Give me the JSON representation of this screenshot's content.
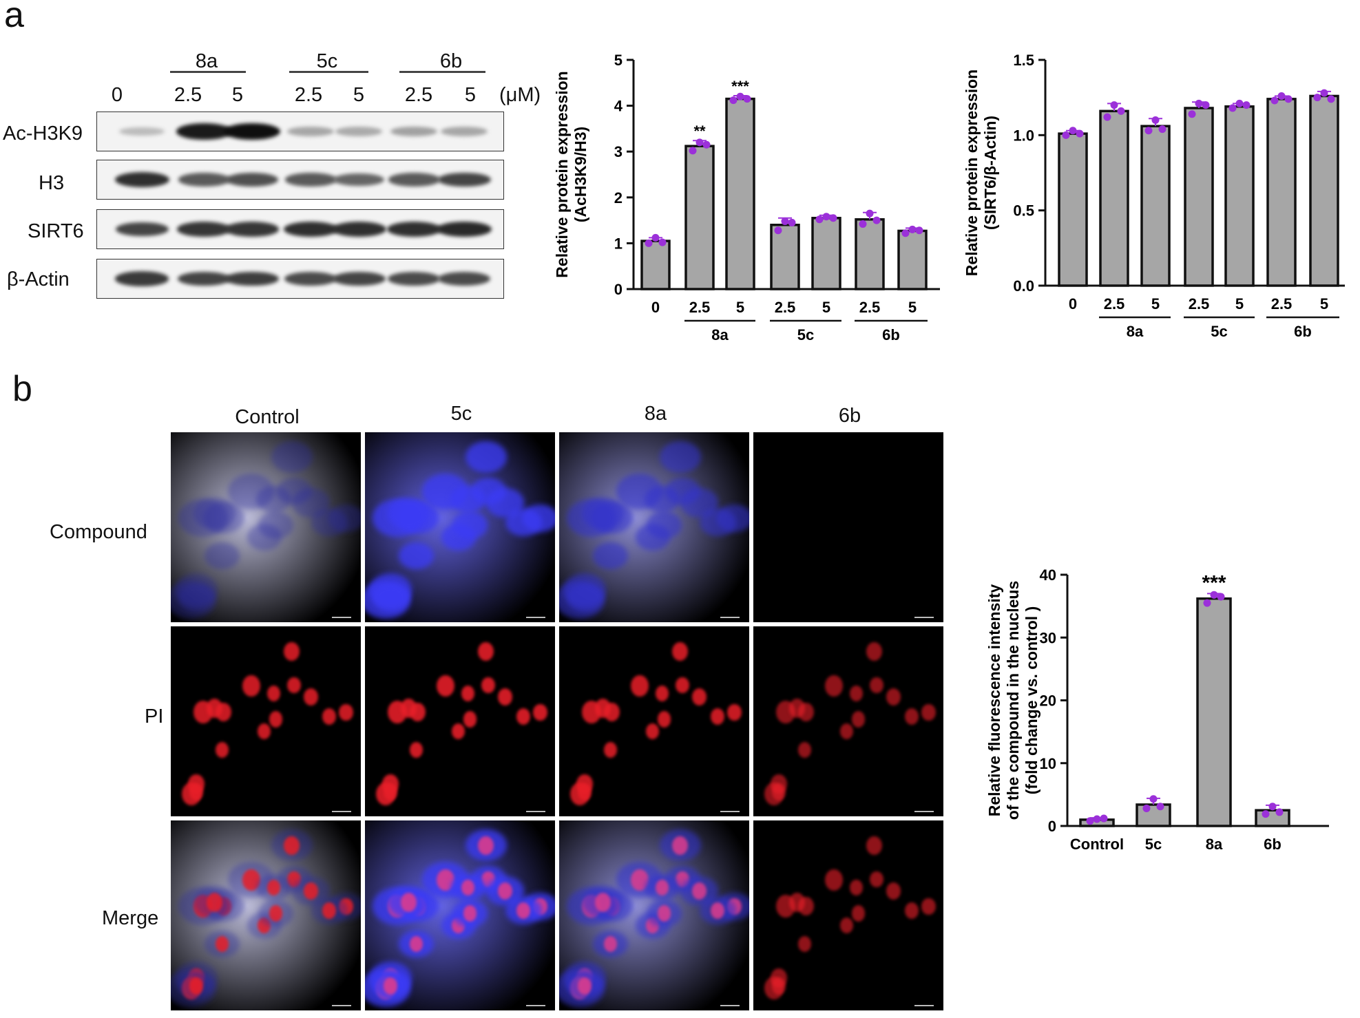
{
  "panel_a": {
    "letter": "a",
    "western_blot": {
      "groups": [
        {
          "name": "8a",
          "doses": [
            "2.5",
            "5"
          ]
        },
        {
          "name": "5c",
          "doses": [
            "2.5",
            "5"
          ]
        },
        {
          "name": "6b",
          "doses": [
            "2.5",
            "5"
          ]
        }
      ],
      "lane_labels": [
        "0",
        "2.5",
        "5",
        "2.5",
        "5",
        "2.5",
        "5"
      ],
      "unit": "(μM)",
      "rows": [
        {
          "label": "Ac-H3K9",
          "intensity": [
            0.2,
            0.95,
            1.0,
            0.3,
            0.28,
            0.32,
            0.3
          ]
        },
        {
          "label": "H3",
          "intensity": [
            0.85,
            0.65,
            0.7,
            0.65,
            0.6,
            0.65,
            0.75
          ]
        },
        {
          "label": "SIRT6",
          "intensity": [
            0.75,
            0.82,
            0.82,
            0.85,
            0.85,
            0.85,
            0.88
          ]
        },
        {
          "label": "β-Actin",
          "intensity": [
            0.8,
            0.75,
            0.78,
            0.72,
            0.75,
            0.72,
            0.72
          ]
        }
      ]
    }
  },
  "panel_b": {
    "letter": "b",
    "columns": [
      "Control",
      "5c",
      "8a",
      "6b"
    ],
    "rows": [
      "Compound",
      "PI",
      "Merge"
    ]
  },
  "colors": {
    "bar": "#a6a6a6",
    "point": "#9b30d9",
    "axis": "#111111"
  },
  "chart_data": [
    {
      "type": "bar",
      "ylabel": [
        "Relative protein expression",
        "(AcH3K9/H3)"
      ],
      "ylim": [
        0,
        5
      ],
      "yticks": [
        "0",
        "1",
        "2",
        "3",
        "4",
        "5"
      ],
      "categories": [
        "0",
        "2.5",
        "5",
        "2.5",
        "5",
        "2.5",
        "5"
      ],
      "groups": [
        "8a",
        "5c",
        "6b"
      ],
      "values": [
        1.05,
        3.12,
        4.15,
        1.4,
        1.55,
        1.52,
        1.27
      ],
      "errors": [
        0.07,
        0.12,
        0.07,
        0.15,
        0.06,
        0.15,
        0.06
      ],
      "points": [
        [
          1.0,
          1.12,
          1.02
        ],
        [
          3.02,
          3.2,
          3.15
        ],
        [
          4.12,
          4.2,
          4.15
        ],
        [
          1.28,
          1.48,
          1.45
        ],
        [
          1.52,
          1.58,
          1.55
        ],
        [
          1.42,
          1.65,
          1.5
        ],
        [
          1.22,
          1.3,
          1.28
        ]
      ],
      "annotations": [
        "",
        "**",
        "***",
        "",
        "",
        "",
        ""
      ]
    },
    {
      "type": "bar",
      "ylabel": [
        "Relative protein expression",
        "(SIRT6/β-Actin)"
      ],
      "ylim": [
        0,
        1.5
      ],
      "yticks": [
        "0.0",
        "0.5",
        "1.0",
        "1.5"
      ],
      "categories": [
        "0",
        "2.5",
        "5",
        "2.5",
        "5",
        "2.5",
        "5"
      ],
      "groups": [
        "8a",
        "5c",
        "6b"
      ],
      "values": [
        1.01,
        1.16,
        1.06,
        1.18,
        1.19,
        1.24,
        1.26
      ],
      "errors": [
        0.02,
        0.05,
        0.05,
        0.04,
        0.02,
        0.02,
        0.03
      ],
      "points": [
        [
          1.0,
          1.03,
          1.01
        ],
        [
          1.12,
          1.2,
          1.16
        ],
        [
          1.03,
          1.1,
          1.04
        ],
        [
          1.14,
          1.21,
          1.2
        ],
        [
          1.18,
          1.21,
          1.2
        ],
        [
          1.23,
          1.26,
          1.24
        ],
        [
          1.25,
          1.28,
          1.24
        ]
      ],
      "annotations": [
        "",
        "",
        "",
        "",
        "",
        "",
        ""
      ]
    },
    {
      "type": "bar",
      "ylabel": [
        "Relative fluorescence intensity",
        "of the compound in the nucleus",
        "(fold change vs. control )"
      ],
      "ylim": [
        0,
        40
      ],
      "yticks": [
        "0",
        "10",
        "20",
        "30",
        "40"
      ],
      "categories": [
        "Control",
        "5c",
        "8a",
        "6b"
      ],
      "values": [
        1.0,
        3.4,
        36.2,
        2.5
      ],
      "errors": [
        0.3,
        1.0,
        0.8,
        0.8
      ],
      "points": [
        [
          0.8,
          1.1,
          1.2
        ],
        [
          2.8,
          4.3,
          3.1
        ],
        [
          35.5,
          36.8,
          36.5
        ],
        [
          1.9,
          3.1,
          2.2
        ]
      ],
      "annotations": [
        "",
        "",
        "***",
        ""
      ]
    }
  ]
}
